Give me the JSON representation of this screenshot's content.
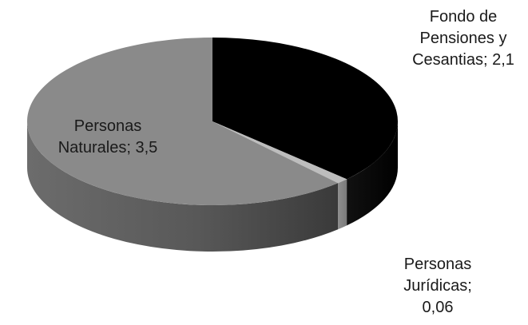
{
  "chart_data": {
    "type": "pie",
    "title": "",
    "style": "3d",
    "slices": [
      {
        "name": "Fondo de Pensiones y Cesantias",
        "value": 2.1,
        "color": "#000000",
        "label_lines": [
          "Fondo de",
          "Pensiones y",
          "Cesantias; 2,1"
        ]
      },
      {
        "name": "Personas Jurídicas",
        "value": 0.06,
        "color": "#bdbdbd",
        "label_lines": [
          "Personas",
          "Jurídicas;",
          "0,06"
        ]
      },
      {
        "name": "Personas Naturales",
        "value": 3.5,
        "color": "#8a8a8a",
        "label_lines": [
          "Personas",
          "Naturales; 3,5"
        ]
      }
    ]
  }
}
